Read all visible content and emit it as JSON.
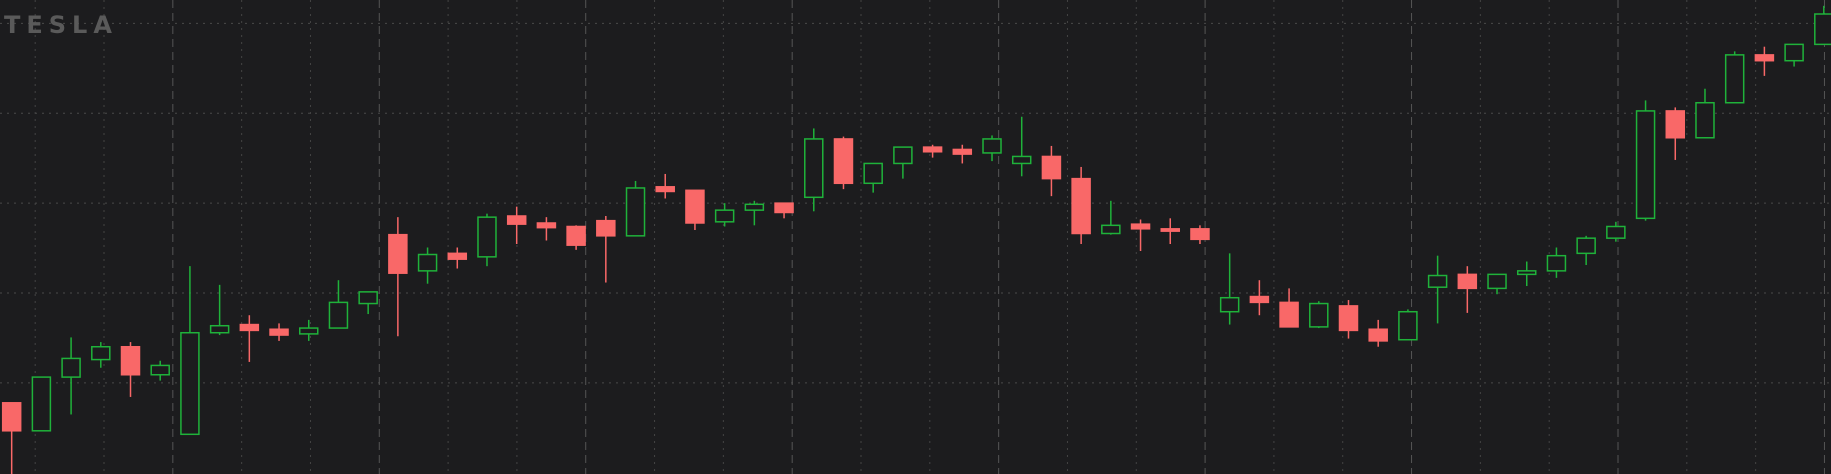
{
  "chart_data": {
    "type": "candlestick",
    "logo": "TESLA",
    "open": [
      61,
      37,
      83,
      98,
      109,
      85,
      34,
      121,
      128,
      124,
      120,
      125,
      146,
      205,
      174,
      189,
      186,
      221,
      215,
      212,
      217,
      204,
      246,
      243,
      216,
      226,
      232,
      237,
      287,
      249,
      266,
      280,
      278,
      275,
      266,
      272,
      253,
      206,
      214,
      210,
      210,
      139,
      152,
      147,
      126,
      144,
      124,
      115,
      160,
      171,
      159,
      171,
      174,
      189,
      202,
      219,
      311,
      288,
      318,
      359,
      354,
      368
    ],
    "high": [
      61,
      83,
      117,
      113,
      113,
      97,
      178,
      162,
      136,
      129,
      132,
      166,
      156,
      220,
      194,
      194,
      223,
      229,
      220,
      213,
      221,
      251,
      257,
      243,
      232,
      234,
      232,
      296,
      289,
      266,
      280,
      282,
      282,
      290,
      306,
      281,
      263,
      234,
      218,
      219,
      213,
      189,
      166,
      159,
      148,
      149,
      132,
      141,
      187,
      178,
      171,
      182,
      194,
      204,
      216,
      320,
      314,
      330,
      362,
      366,
      368,
      401
    ],
    "low": [
      0,
      37,
      51,
      91,
      66,
      80,
      34,
      119,
      96,
      114,
      114,
      125,
      137,
      118,
      163,
      176,
      178,
      197,
      200,
      192,
      164,
      204,
      236,
      209,
      212,
      213,
      219,
      225,
      244,
      241,
      253,
      271,
      266,
      268,
      255,
      238,
      197,
      205,
      191,
      197,
      197,
      128,
      136,
      126,
      125,
      116,
      109,
      115,
      129,
      138,
      154,
      161,
      168,
      179,
      199,
      217,
      269,
      288,
      318,
      341,
      349,
      368
    ],
    "close": [
      37,
      83,
      99,
      109,
      85,
      93,
      121,
      127,
      123,
      119,
      125,
      147,
      156,
      172,
      188,
      184,
      220,
      214,
      211,
      196,
      204,
      245,
      242,
      215,
      226,
      231,
      224,
      287,
      249,
      266,
      280,
      276,
      274,
      287,
      272,
      253,
      206,
      213,
      210,
      208,
      201,
      151,
      147,
      126,
      146,
      123,
      114,
      139,
      170,
      159,
      171,
      174,
      187,
      202,
      212,
      311,
      288,
      318,
      359,
      354,
      368,
      394
    ],
    "up_color": "#1fb23a",
    "down_color": "#f96868",
    "ylim": [
      0,
      406
    ],
    "yticks": [
      78,
      155,
      232,
      309,
      386
    ],
    "grid": true
  }
}
